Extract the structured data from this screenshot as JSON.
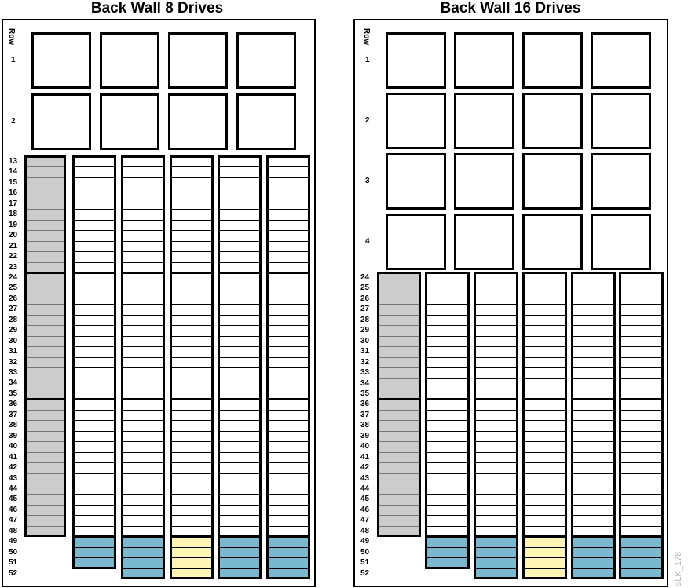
{
  "panels": [
    {
      "title": "Back Wall 8 Drives",
      "row_header": "Row",
      "box_rows": [
        "1",
        "2"
      ],
      "row_labels": [
        "13",
        "14",
        "15",
        "16",
        "17",
        "18",
        "19",
        "20",
        "21",
        "22",
        "23",
        "24",
        "25",
        "26",
        "27",
        "28",
        "29",
        "30",
        "31",
        "32",
        "33",
        "34",
        "35",
        "36",
        "37",
        "38",
        "39",
        "40",
        "41",
        "42",
        "43",
        "44",
        "45",
        "46",
        "47",
        "48",
        "49",
        "50",
        "51",
        "52"
      ]
    },
    {
      "title": "Back Wall 16 Drives",
      "row_header": "Row",
      "box_rows": [
        "1",
        "2",
        "3",
        "4"
      ],
      "row_labels": [
        "24",
        "25",
        "26",
        "27",
        "28",
        "29",
        "30",
        "31",
        "32",
        "33",
        "34",
        "35",
        "36",
        "37",
        "38",
        "39",
        "40",
        "41",
        "42",
        "43",
        "44",
        "45",
        "46",
        "47",
        "48",
        "49",
        "50",
        "51",
        "52"
      ]
    }
  ],
  "figure_id": "SLK_178",
  "colors": {
    "reserved": "#cccccc",
    "slot_blue": "#7ab8d0",
    "slot_yellow": "#fff5b4",
    "slot_empty": "#ffffff"
  }
}
